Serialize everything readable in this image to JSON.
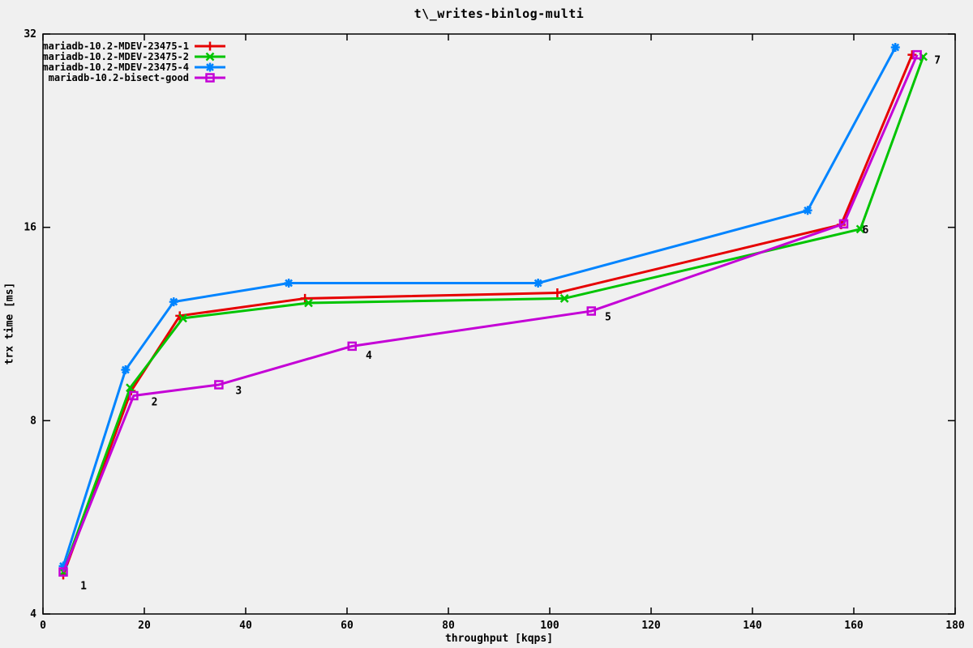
{
  "chart_data": {
    "type": "line",
    "title": "t\\_writes-binlog-multi",
    "xlabel": "throughput [kqps]",
    "ylabel": "trx time [ms]",
    "xlim": [
      0,
      180
    ],
    "ylim": [
      4,
      32
    ],
    "y_scale": "log2",
    "x_ticks": [
      0,
      20,
      40,
      60,
      80,
      100,
      120,
      140,
      160,
      180
    ],
    "y_ticks": [
      4,
      8,
      16,
      32
    ],
    "grid": "off",
    "legend_position": "top-left-inside",
    "background_color": "#f0f0f0",
    "border_color": "#000000",
    "series": [
      {
        "name": "mariadb-10.2-MDEV-23475-1",
        "color": "#e60000",
        "marker": "plus",
        "points": [
          [
            4.0,
            4.6
          ],
          [
            17.4,
            8.9
          ],
          [
            27.0,
            11.65
          ],
          [
            51.7,
            12.4
          ],
          [
            101.5,
            12.65
          ],
          [
            157.5,
            16.15
          ],
          [
            171.5,
            29.7
          ]
        ]
      },
      {
        "name": "mariadb-10.2-MDEV-23475-2",
        "color": "#00c400",
        "marker": "x",
        "points": [
          [
            4.0,
            4.65
          ],
          [
            17.2,
            9.0
          ],
          [
            27.6,
            11.55
          ],
          [
            52.4,
            12.2
          ],
          [
            102.9,
            12.4
          ],
          [
            161.3,
            15.9
          ],
          [
            173.7,
            29.5
          ]
        ]
      },
      {
        "name": "mariadb-10.2-MDEV-23475-4",
        "color": "#0084ff",
        "marker": "star",
        "points": [
          [
            4.0,
            4.75
          ],
          [
            16.3,
            9.6
          ],
          [
            25.8,
            12.25
          ],
          [
            48.5,
            13.1
          ],
          [
            97.7,
            13.1
          ],
          [
            150.9,
            17.0
          ],
          [
            168.2,
            30.5
          ]
        ]
      },
      {
        "name": "mariadb-10.2-bisect-good",
        "color": "#c400d6",
        "marker": "square",
        "points": [
          [
            4.0,
            4.65
          ],
          [
            17.9,
            8.75
          ],
          [
            34.7,
            9.1
          ],
          [
            61.0,
            10.45
          ],
          [
            108.2,
            11.85
          ],
          [
            158.0,
            16.2
          ],
          [
            172.5,
            29.7
          ]
        ]
      }
    ],
    "point_labels": [
      {
        "text": "1",
        "x": 8.0,
        "y": 4.42
      },
      {
        "text": "2",
        "x": 22.0,
        "y": 8.55
      },
      {
        "text": "3",
        "x": 38.6,
        "y": 8.9
      },
      {
        "text": "4",
        "x": 64.3,
        "y": 10.1
      },
      {
        "text": "5",
        "x": 111.5,
        "y": 11.6
      },
      {
        "text": "6",
        "x": 162.3,
        "y": 15.85
      },
      {
        "text": "7",
        "x": 176.5,
        "y": 29.1
      }
    ]
  }
}
